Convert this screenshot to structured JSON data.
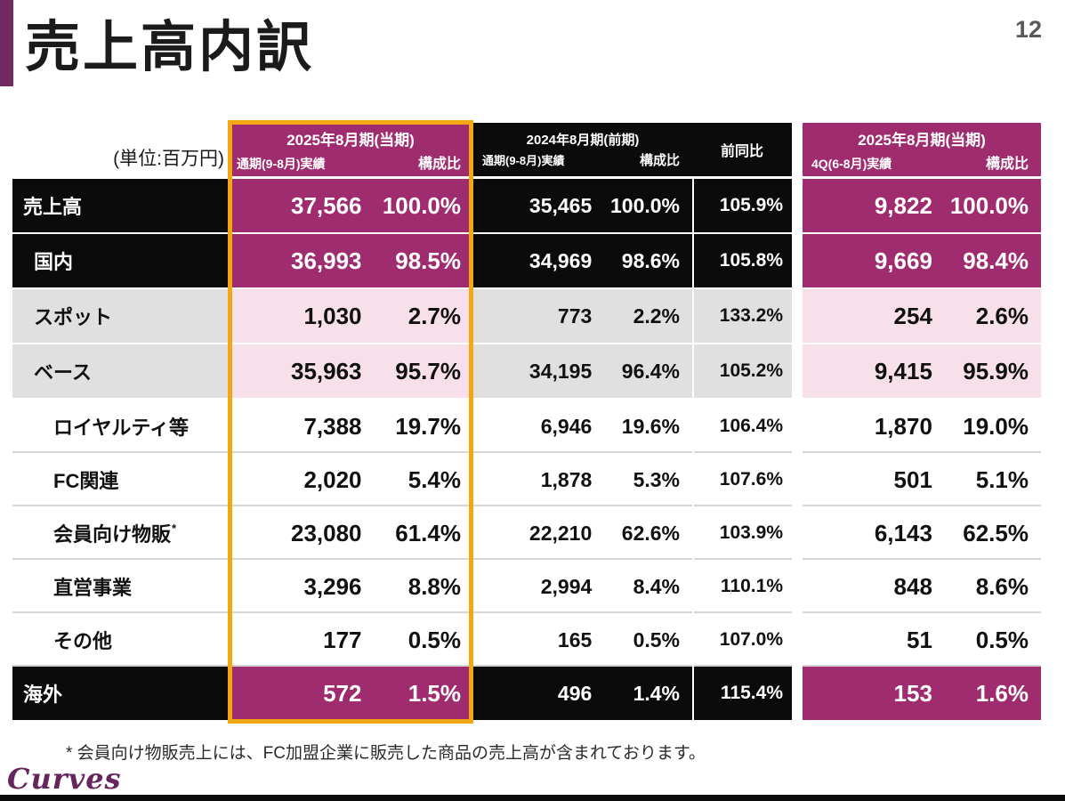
{
  "page": {
    "title": "売上高内訳",
    "page_number": "12",
    "unit_label": "(単位:百万円)",
    "footnote": "* 会員向け物販売上には、FC加盟企業に販売した商品の売上高が含まれております。",
    "logo_text": "Curves"
  },
  "colors": {
    "accent_magenta": "#A02C70",
    "light_pink": "#F8E0EB",
    "row_black": "#0B0B0B",
    "row_gray": "#E1E0E0",
    "highlight_orange": "#F3A712",
    "title_bar_purple": "#712A61",
    "logo_purple": "#65265D"
  },
  "table": {
    "groups": [
      {
        "title": "2025年8月期(当期)",
        "sub": [
          "通期(9-8月)実績",
          "構成比"
        ]
      },
      {
        "title": "2024年8月期(前期)",
        "sub": [
          "通期(9-8月)実績",
          "構成比"
        ]
      },
      {
        "title": "前同比"
      },
      {
        "title": "2025年8月期(当期)",
        "sub": [
          "4Q(6-8月)実績",
          "構成比"
        ]
      }
    ],
    "rows": [
      {
        "label": "売上高",
        "style": "black",
        "indent": 0,
        "cur": [
          "37,566",
          "100.0%"
        ],
        "prev": [
          "35,465",
          "100.0%"
        ],
        "yoy": "105.9%",
        "q4": [
          "9,822",
          "100.0%"
        ]
      },
      {
        "label": "国内",
        "style": "black",
        "indent": 1,
        "cur": [
          "36,993",
          "98.5%"
        ],
        "prev": [
          "34,969",
          "98.6%"
        ],
        "yoy": "105.8%",
        "q4": [
          "9,669",
          "98.4%"
        ]
      },
      {
        "label": "スポット",
        "style": "gray",
        "indent": 1,
        "cur": [
          "1,030",
          "2.7%"
        ],
        "prev": [
          "773",
          "2.2%"
        ],
        "yoy": "133.2%",
        "q4": [
          "254",
          "2.6%"
        ]
      },
      {
        "label": "ベース",
        "style": "gray",
        "indent": 1,
        "cur": [
          "35,963",
          "95.7%"
        ],
        "prev": [
          "34,195",
          "96.4%"
        ],
        "yoy": "105.2%",
        "q4": [
          "9,415",
          "95.9%"
        ]
      },
      {
        "label": "ロイヤルティ等",
        "style": "white",
        "indent": 2,
        "cur": [
          "7,388",
          "19.7%"
        ],
        "prev": [
          "6,946",
          "19.6%"
        ],
        "yoy": "106.4%",
        "q4": [
          "1,870",
          "19.0%"
        ]
      },
      {
        "label": "FC関連",
        "style": "white",
        "indent": 2,
        "cur": [
          "2,020",
          "5.4%"
        ],
        "prev": [
          "1,878",
          "5.3%"
        ],
        "yoy": "107.6%",
        "q4": [
          "501",
          "5.1%"
        ]
      },
      {
        "label": "会員向け物販",
        "sup": "*",
        "style": "white",
        "indent": 2,
        "cur": [
          "23,080",
          "61.4%"
        ],
        "prev": [
          "22,210",
          "62.6%"
        ],
        "yoy": "103.9%",
        "q4": [
          "6,143",
          "62.5%"
        ]
      },
      {
        "label": "直営事業",
        "style": "white",
        "indent": 2,
        "cur": [
          "3,296",
          "8.8%"
        ],
        "prev": [
          "2,994",
          "8.4%"
        ],
        "yoy": "110.1%",
        "q4": [
          "848",
          "8.6%"
        ]
      },
      {
        "label": "その他",
        "style": "white",
        "indent": 2,
        "cur": [
          "177",
          "0.5%"
        ],
        "prev": [
          "165",
          "0.5%"
        ],
        "yoy": "107.0%",
        "q4": [
          "51",
          "0.5%"
        ]
      },
      {
        "label": "海外",
        "style": "black",
        "indent": 0,
        "cur": [
          "572",
          "1.5%"
        ],
        "prev": [
          "496",
          "1.4%"
        ],
        "yoy": "115.4%",
        "q4": [
          "153",
          "1.6%"
        ]
      }
    ]
  }
}
